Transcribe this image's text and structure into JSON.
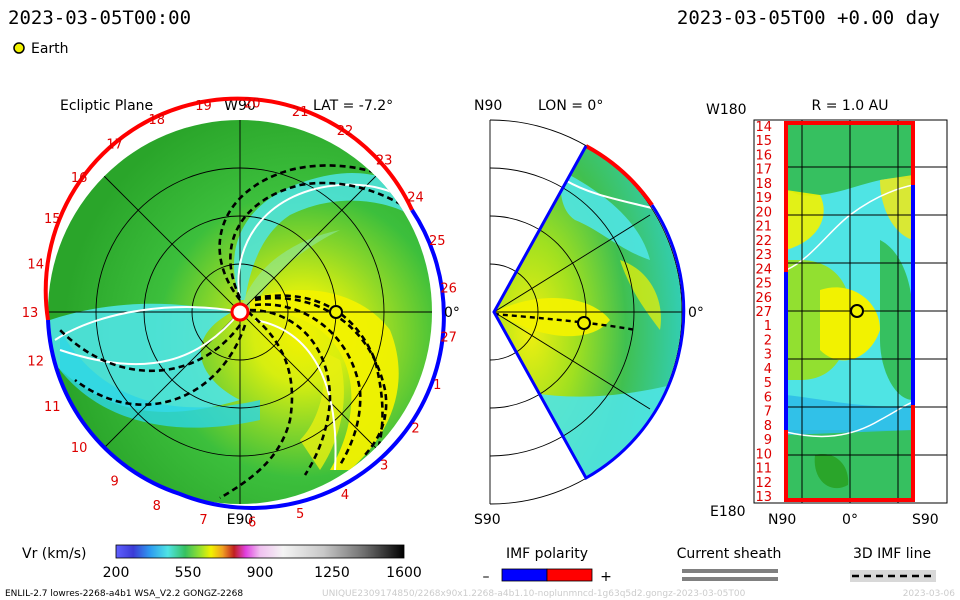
{
  "header": {
    "datetime_left": "2023-03-05T00:00",
    "datetime_right": "2023-03-05T00 +0.00 day",
    "earth_legend": "Earth"
  },
  "panels": {
    "ecliptic": {
      "title": "Ecliptic Plane",
      "top_label": "W90",
      "bottom_label": "E90",
      "right_label": "0°",
      "lat_label": "LAT = -7.2°",
      "carrington_labels": [
        "19",
        "20",
        "21",
        "22",
        "23",
        "24",
        "25",
        "26",
        "27",
        "1",
        "2",
        "3",
        "4",
        "5",
        "6",
        "7",
        "8",
        "9",
        "10",
        "11",
        "12",
        "13",
        "14",
        "15",
        "16",
        "17",
        "18"
      ]
    },
    "meridional": {
      "top_label": "N90",
      "bottom_label": "S90",
      "right_label": "0°",
      "lon_label": "LON = 0°"
    },
    "synoptic": {
      "title": "R = 1.0 AU",
      "top_left_label": "W180",
      "bottom_left_label": "E180",
      "x_labels": [
        "N90",
        "0°",
        "S90"
      ],
      "y_labels": [
        "14",
        "15",
        "16",
        "17",
        "18",
        "19",
        "20",
        "21",
        "22",
        "23",
        "24",
        "25",
        "26",
        "27",
        "1",
        "2",
        "3",
        "4",
        "5",
        "6",
        "7",
        "8",
        "9",
        "10",
        "11",
        "12",
        "13"
      ]
    }
  },
  "colorbar": {
    "label": "Vr (km/s)",
    "ticks": [
      "200",
      "550",
      "900",
      "1250",
      "1600"
    ],
    "colors": [
      "#3b3bd6",
      "#2d9df0",
      "#4fe4e4",
      "#36c060",
      "#92e030",
      "#f2f200",
      "#f0a020",
      "#c02020",
      "#e040e0",
      "#f0c0f0",
      "#f4f4f4",
      "#b0b0b0",
      "#505050",
      "#000000"
    ]
  },
  "legend": {
    "imf_title": "IMF polarity",
    "imf_minus": "–",
    "imf_plus": "+",
    "imf_negative_color": "#0000ff",
    "imf_positive_color": "#ff0000",
    "sheath_title": "Current sheath",
    "sheath_color": "#808080",
    "imf3d_title": "3D IMF line"
  },
  "footer": {
    "model_info": "ENLIL-2.7 lowres-2268-a4b1 WSA_V2.2 GONGZ-2268",
    "run_id": "UNIQUE2309174850/2268x90x1.2268-a4b1.10-noplunmncd-1g63q5d2.gongz-2023-03-05T00",
    "date_stamp": "2023-03-06"
  },
  "chart_data": {
    "type": "heatmap",
    "quantity": "Vr (km/s)",
    "colorbar_range": [
      200,
      1600
    ],
    "earth_position": {
      "lon_deg": 0,
      "lat_deg": -7.2,
      "r_au": 1.0
    }
  }
}
